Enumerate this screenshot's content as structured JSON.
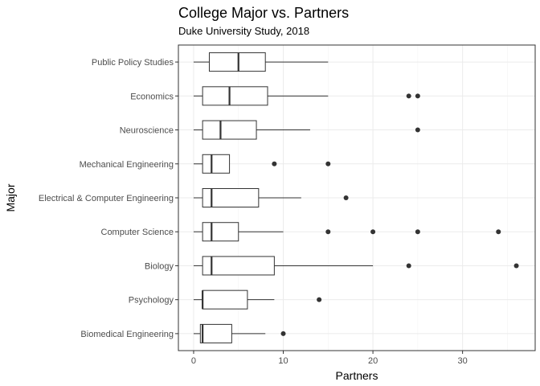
{
  "chart_data": {
    "type": "boxplot",
    "orientation": "horizontal",
    "title": "College Major vs. Partners",
    "subtitle": "Duke University Study, 2018",
    "xlabel": "Partners",
    "ylabel": "Major",
    "xlim": [
      -1.7,
      38.1
    ],
    "xticks": [
      0,
      10,
      20,
      30
    ],
    "grid": true,
    "categories": [
      "Public Policy Studies",
      "Economics",
      "Neuroscience",
      "Mechanical Engineering",
      "Electrical & Computer Engineering",
      "Computer Science",
      "Biology",
      "Psychology",
      "Biomedical Engineering"
    ],
    "boxes": [
      {
        "major": "Public Policy Studies",
        "min": 0,
        "q1": 1.75,
        "median": 5,
        "q3": 8,
        "max": 15,
        "outliers": []
      },
      {
        "major": "Economics",
        "min": 0,
        "q1": 1,
        "median": 4,
        "q3": 8.25,
        "max": 15,
        "outliers": [
          24,
          25
        ]
      },
      {
        "major": "Neuroscience",
        "min": 0,
        "q1": 1,
        "median": 3,
        "q3": 7,
        "max": 13,
        "outliers": [
          25
        ]
      },
      {
        "major": "Mechanical Engineering",
        "min": 0,
        "q1": 1,
        "median": 2,
        "q3": 4,
        "max": 4,
        "outliers": [
          9,
          15
        ]
      },
      {
        "major": "Electrical & Computer Engineering",
        "min": 0,
        "q1": 1,
        "median": 2,
        "q3": 7.25,
        "max": 12,
        "outliers": [
          17
        ]
      },
      {
        "major": "Computer Science",
        "min": 0,
        "q1": 1,
        "median": 2,
        "q3": 5,
        "max": 10,
        "outliers": [
          15,
          20,
          25,
          34
        ]
      },
      {
        "major": "Biology",
        "min": 0,
        "q1": 1,
        "median": 2,
        "q3": 9,
        "max": 20,
        "outliers": [
          24,
          36
        ]
      },
      {
        "major": "Psychology",
        "min": 0,
        "q1": 1,
        "median": 1,
        "q3": 6,
        "max": 9,
        "outliers": [
          14
        ]
      },
      {
        "major": "Biomedical Engineering",
        "min": 0,
        "q1": 0.75,
        "median": 1,
        "q3": 4.25,
        "max": 8,
        "outliers": [
          10
        ]
      }
    ]
  }
}
